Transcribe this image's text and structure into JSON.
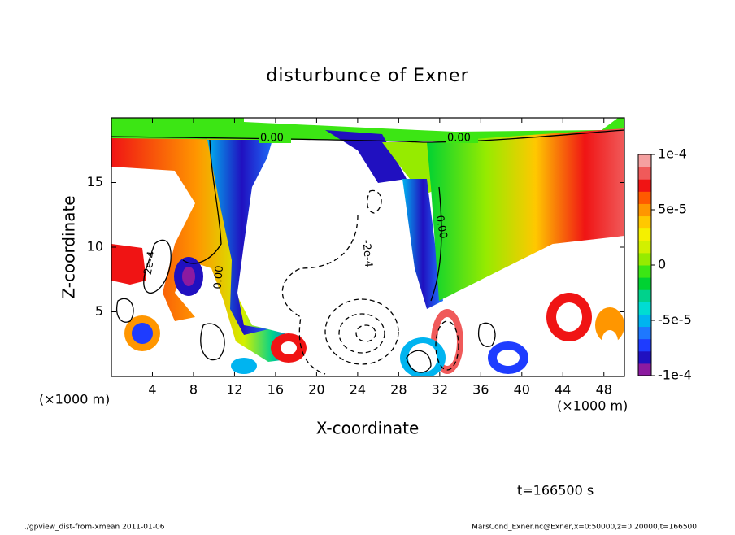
{
  "chart_data": {
    "type": "contour",
    "title": "disturbunce of Exner",
    "x_label": "X-coordinate",
    "y_label": "Z-coordinate",
    "x_unit_left": "(×1000 m)",
    "x_unit_right": "(×1000 m)",
    "time_label": "t=166500 s",
    "footer_left": "./gpview_dist-from-xmean  2011-01-06",
    "footer_right": "MarsCond_Exner.nc@Exner,x=0:50000,z=0:20000,t=166500",
    "xlim": [
      0,
      50
    ],
    "xticks": [
      4,
      8,
      12,
      16,
      20,
      24,
      28,
      32,
      36,
      40,
      44,
      48
    ],
    "ylim": [
      0,
      20
    ],
    "yticks": [
      5,
      10,
      15
    ],
    "annotations": [
      "0.00",
      "0.00",
      "0.00",
      "0.00",
      "2e-4",
      "-2e-4"
    ],
    "colorbar": {
      "lim": [
        -0.0001,
        0.0001
      ],
      "ticks": [
        {
          "value": 0.0001,
          "label": "1e-4"
        },
        {
          "value": 5e-05,
          "label": "5e-5"
        },
        0,
        {
          "value": -5e-05,
          "label": "-5e-5"
        },
        {
          "value": -0.0001,
          "label": "-1e-4"
        }
      ],
      "colors": [
        "#8c1aa0",
        "#2010c0",
        "#1e3cff",
        "#1e78ff",
        "#00b4f0",
        "#00dcd2",
        "#00d28c",
        "#00d232",
        "#3ce614",
        "#96eb00",
        "#d2f000",
        "#f5f000",
        "#ffc800",
        "#ff9600",
        "#ff5a00",
        "#f01414",
        "#f05a5a",
        "#f5a0a0"
      ]
    }
  }
}
